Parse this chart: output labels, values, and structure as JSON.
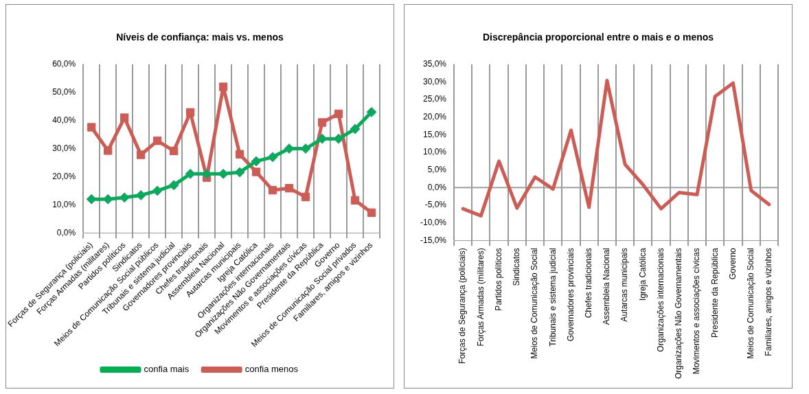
{
  "chart_data": [
    {
      "type": "line",
      "title": "Níveis de confiança: mais vs. menos",
      "categories": [
        "Forças de Segurança (policiais)",
        "Forças Armadas (militares)",
        "Partidos políticos",
        "Sindicatos",
        "Meios de Comunicação Social públicos",
        "Tribunais e sistema judicial",
        "Governadores provinciais",
        "Chefes tradicionais",
        "Assembleia Nacional",
        "Autarcas municipais",
        "Igreja Católica",
        "Organizações internacionais",
        "Organizações Não Governamentais",
        "Movimentos e associações cívicas",
        "Presidente da República",
        "Governo",
        "Meios de Comunicação Social privados",
        "Familiares, amigos e vizinhos"
      ],
      "series": [
        {
          "name": "confia mais",
          "color": "#00b050",
          "marker": "diamond",
          "values": [
            12,
            12,
            12.6,
            13.4,
            15,
            17,
            21,
            21,
            21,
            21.6,
            25.5,
            27,
            30,
            30,
            33.5,
            33.5,
            37,
            43
          ]
        },
        {
          "name": "confia menos",
          "color": "#cd5c55",
          "marker": "square",
          "values": [
            37.6,
            29.3,
            41,
            27.8,
            32.8,
            29.2,
            42.9,
            19.7,
            52,
            28,
            21.7,
            15.2,
            15.9,
            12.8,
            39.3,
            42.4,
            11.6,
            7.2
          ]
        }
      ],
      "ylim": [
        0,
        60
      ],
      "yticks": [
        {
          "value": 0,
          "label": "0,0%"
        },
        {
          "value": 10,
          "label": "10,0%"
        },
        {
          "value": 20,
          "label": "20,0%"
        },
        {
          "value": 30,
          "label": "30,0%"
        },
        {
          "value": 40,
          "label": "40,0%"
        },
        {
          "value": 50,
          "label": "50,0%"
        },
        {
          "value": 60,
          "label": "60,0%"
        }
      ],
      "grid": "x",
      "legend": "bottom",
      "line_style": "solid"
    },
    {
      "type": "line",
      "title": "Discrepância proporcional entre o mais e o menos",
      "categories": [
        "Forças de Segurança (policiais)",
        "Forças Armadas (militares)",
        "Partidos políticos",
        "Sindicatos",
        "Meios de Comunicação Social",
        "Tribunais e sistema judicial",
        "Governadores provinciais",
        "Chefes tradicionais",
        "Assembleia Nacional",
        "Autarcas municipais",
        "Igreja Católica",
        "Organizações internacionais",
        "Organizações Não Governamentais",
        "Movimentos e associações cívicas",
        "Presidente da República",
        "Governo",
        "Meios de Comunicação Social",
        "Familiares, amigos e vizinhos"
      ],
      "series": [
        {
          "color": "#cd5c55",
          "values": [
            -6,
            -8,
            7.5,
            -5.8,
            3,
            -0.4,
            16.3,
            -5.6,
            30.4,
            6.6,
            0.8,
            -6,
            -1.4,
            -2,
            25.9,
            29.7,
            -0.8,
            -4.8
          ]
        }
      ],
      "ylim": [
        -15,
        35
      ],
      "yticks": [
        {
          "value": -15,
          "label": "-15,0%"
        },
        {
          "value": -10,
          "label": "-10,0%"
        },
        {
          "value": -5,
          "label": "-5,0%"
        },
        {
          "value": 0,
          "label": "0,0%"
        },
        {
          "value": 5,
          "label": "5,0%"
        },
        {
          "value": 10,
          "label": "10,0%"
        },
        {
          "value": 15,
          "label": "15,0%"
        },
        {
          "value": 20,
          "label": "20,0%"
        },
        {
          "value": 25,
          "label": "25,0%"
        },
        {
          "value": 30,
          "label": "30,0%"
        },
        {
          "value": 35,
          "label": "35,0%"
        }
      ],
      "ref_lines": [
        {
          "axis": "y",
          "value": 0,
          "color": "#a0a0a0"
        }
      ],
      "grid": "x",
      "legend": false,
      "marker": "none",
      "line_style": "solid"
    }
  ]
}
